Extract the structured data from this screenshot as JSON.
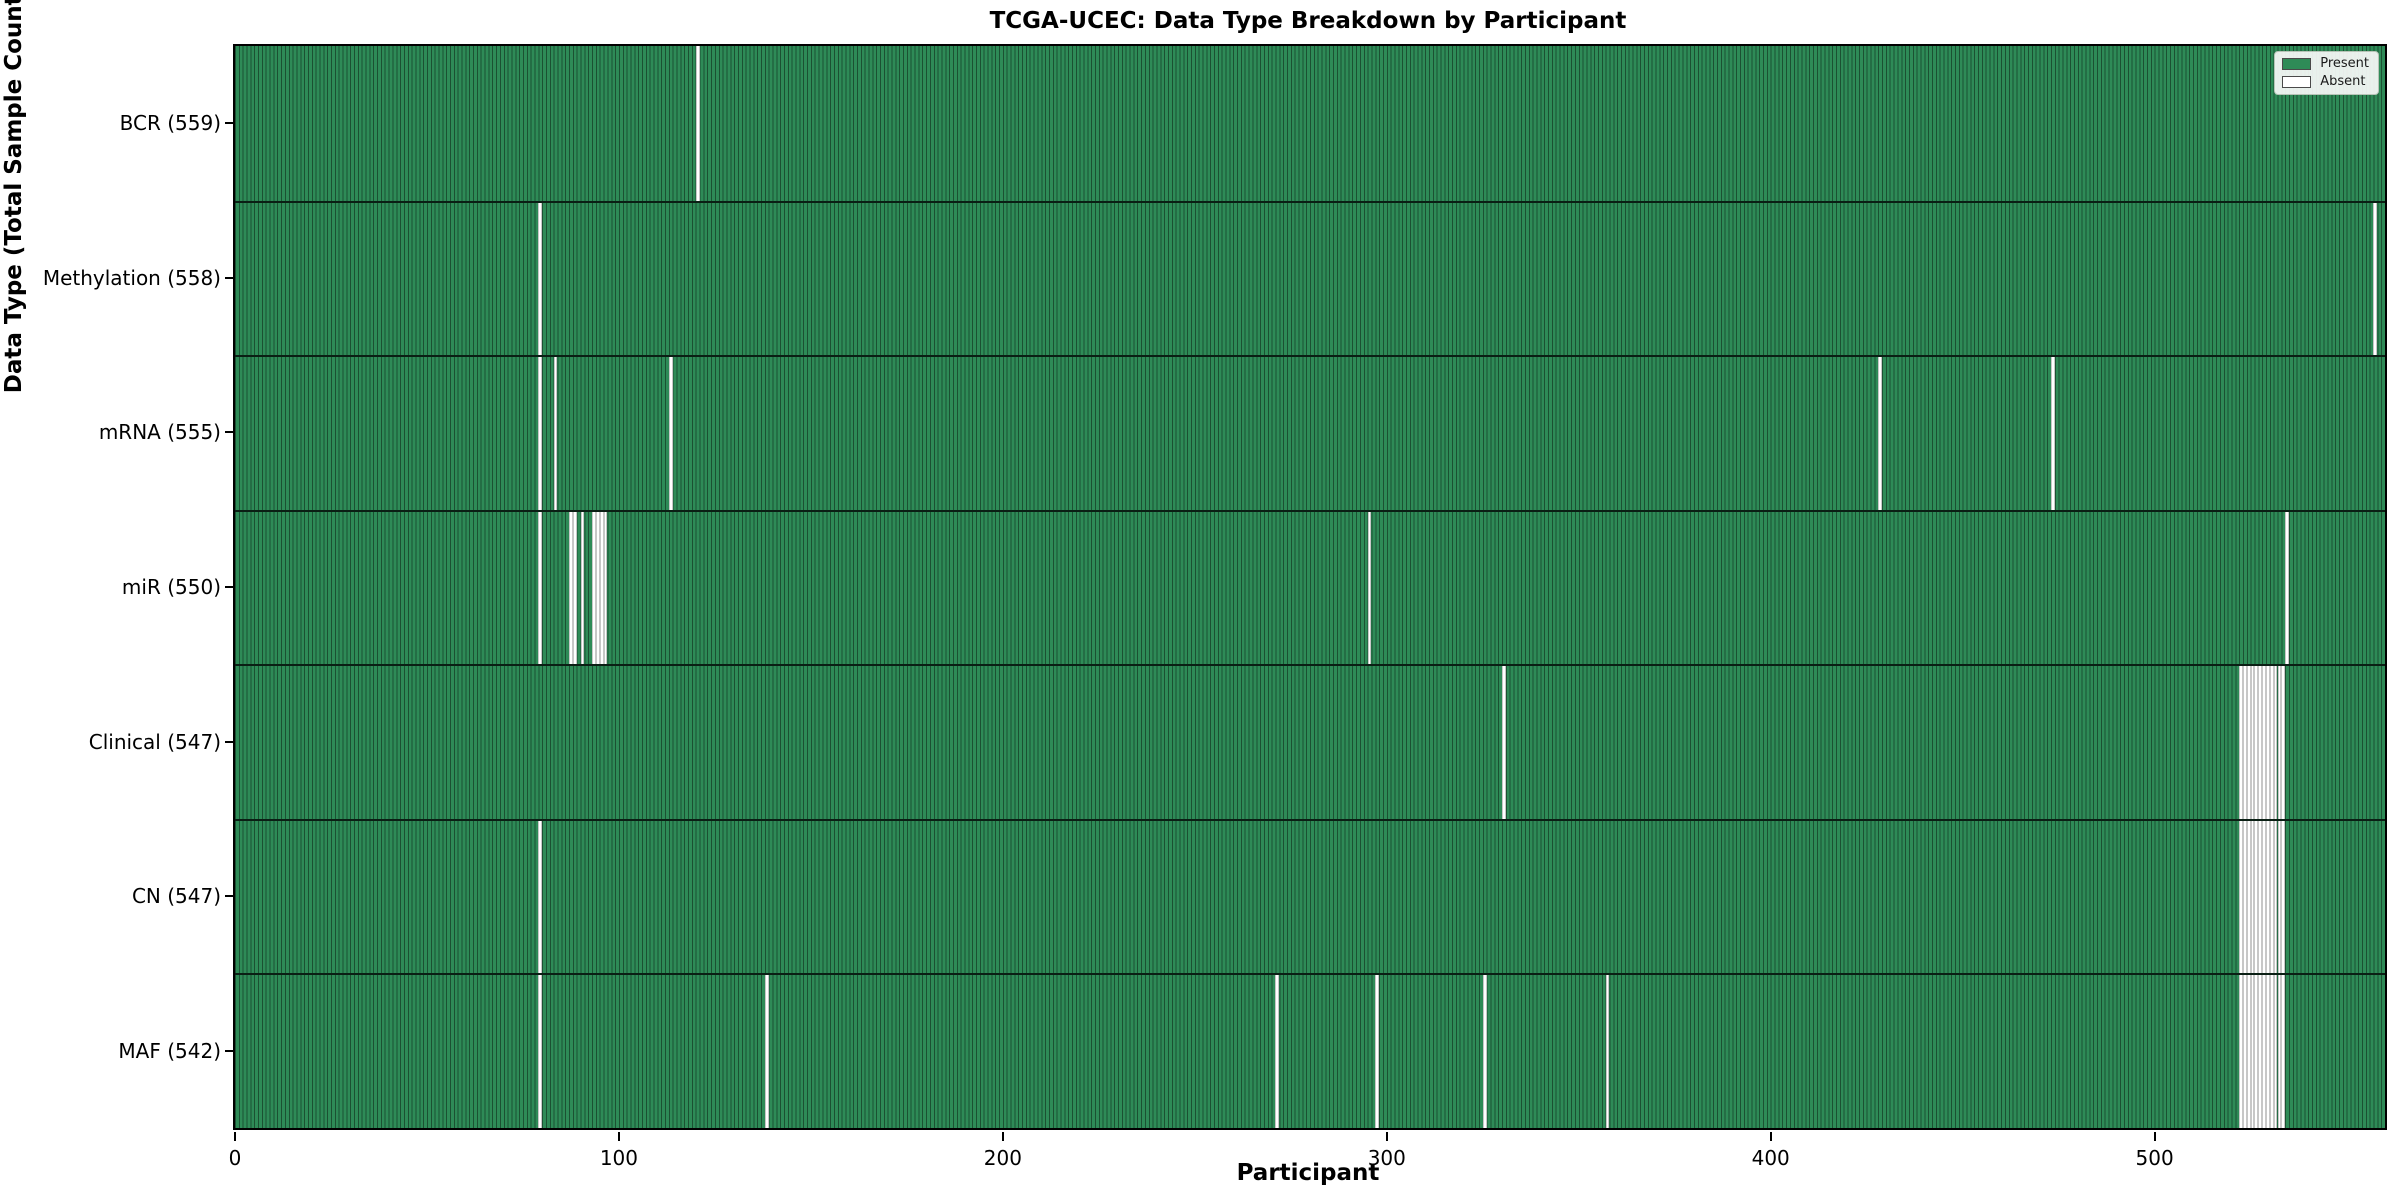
{
  "figure": {
    "kind": "matplotlib-style presence/absence heatmap"
  },
  "chart_data": {
    "type": "heatmap",
    "title": "TCGA-UCEC: Data Type Breakdown by Participant",
    "xlabel": "Participant",
    "ylabel": "Data Type (Total Sample Count)",
    "x_range": [
      0,
      560
    ],
    "xticks": [
      0,
      100,
      200,
      300,
      400,
      500
    ],
    "n_participants": 560,
    "present_color": "#2e8b57",
    "absent_color": "#ffffff",
    "grid": false,
    "legend_position": "upper right",
    "legend": [
      {
        "label": "Present",
        "color": "#2e8b57"
      },
      {
        "label": "Absent",
        "color": "#ffffff"
      }
    ],
    "rows": [
      {
        "name": "BCR",
        "label": "BCR (559)",
        "total": 559,
        "absent": [
          120
        ]
      },
      {
        "name": "Methylation",
        "label": "Methylation (558)",
        "total": 558,
        "absent": [
          79,
          557
        ]
      },
      {
        "name": "mRNA",
        "label": "mRNA (555)",
        "total": 555,
        "absent": [
          79,
          83,
          113,
          428,
          473
        ]
      },
      {
        "name": "miR",
        "label": "miR (550)",
        "total": 550,
        "absent": [
          79,
          87,
          88,
          90,
          93,
          94,
          95,
          96,
          295,
          534
        ]
      },
      {
        "name": "Clinical",
        "label": "Clinical (547)",
        "total": 547,
        "absent": [
          330,
          522,
          523,
          524,
          525,
          526,
          527,
          528,
          529,
          530,
          531,
          532,
          533
        ]
      },
      {
        "name": "CN",
        "label": "CN (547)",
        "total": 547,
        "absent": [
          79,
          522,
          523,
          524,
          525,
          526,
          527,
          528,
          529,
          530,
          531,
          532,
          533
        ]
      },
      {
        "name": "MAF",
        "label": "MAF (542)",
        "total": 542,
        "absent": [
          79,
          138,
          271,
          297,
          325,
          357,
          522,
          523,
          524,
          525,
          526,
          527,
          528,
          529,
          530,
          531,
          532,
          533
        ]
      }
    ]
  }
}
